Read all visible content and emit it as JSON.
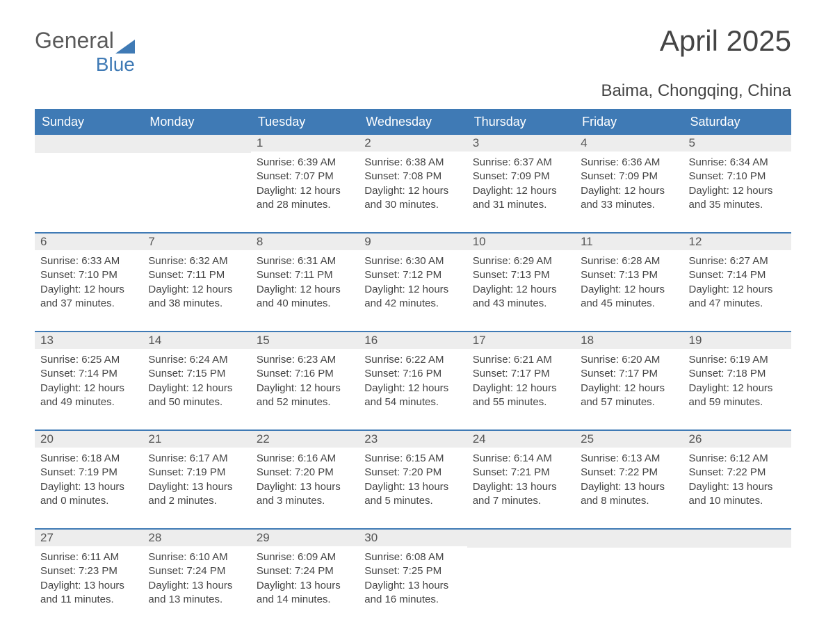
{
  "logo": {
    "word1": "General",
    "word2": "Blue",
    "triangle_color": "#3f7ab5"
  },
  "title": "April 2025",
  "location": "Baima, Chongqing, China",
  "colors": {
    "header_bg": "#3f7ab5",
    "header_text": "#ffffff",
    "daynum_band_bg": "#ededed",
    "body_text": "#444444",
    "week_divider": "#3f7ab5",
    "page_bg": "#ffffff"
  },
  "typography": {
    "title_fontsize": 42,
    "location_fontsize": 24,
    "dayheader_fontsize": 18,
    "daynum_fontsize": 17,
    "body_fontsize": 15
  },
  "day_names": [
    "Sunday",
    "Monday",
    "Tuesday",
    "Wednesday",
    "Thursday",
    "Friday",
    "Saturday"
  ],
  "weeks": [
    [
      {
        "empty": true
      },
      {
        "empty": true
      },
      {
        "num": "1",
        "sunrise": "Sunrise: 6:39 AM",
        "sunset": "Sunset: 7:07 PM",
        "daylight": "Daylight: 12 hours and 28 minutes."
      },
      {
        "num": "2",
        "sunrise": "Sunrise: 6:38 AM",
        "sunset": "Sunset: 7:08 PM",
        "daylight": "Daylight: 12 hours and 30 minutes."
      },
      {
        "num": "3",
        "sunrise": "Sunrise: 6:37 AM",
        "sunset": "Sunset: 7:09 PM",
        "daylight": "Daylight: 12 hours and 31 minutes."
      },
      {
        "num": "4",
        "sunrise": "Sunrise: 6:36 AM",
        "sunset": "Sunset: 7:09 PM",
        "daylight": "Daylight: 12 hours and 33 minutes."
      },
      {
        "num": "5",
        "sunrise": "Sunrise: 6:34 AM",
        "sunset": "Sunset: 7:10 PM",
        "daylight": "Daylight: 12 hours and 35 minutes."
      }
    ],
    [
      {
        "num": "6",
        "sunrise": "Sunrise: 6:33 AM",
        "sunset": "Sunset: 7:10 PM",
        "daylight": "Daylight: 12 hours and 37 minutes."
      },
      {
        "num": "7",
        "sunrise": "Sunrise: 6:32 AM",
        "sunset": "Sunset: 7:11 PM",
        "daylight": "Daylight: 12 hours and 38 minutes."
      },
      {
        "num": "8",
        "sunrise": "Sunrise: 6:31 AM",
        "sunset": "Sunset: 7:11 PM",
        "daylight": "Daylight: 12 hours and 40 minutes."
      },
      {
        "num": "9",
        "sunrise": "Sunrise: 6:30 AM",
        "sunset": "Sunset: 7:12 PM",
        "daylight": "Daylight: 12 hours and 42 minutes."
      },
      {
        "num": "10",
        "sunrise": "Sunrise: 6:29 AM",
        "sunset": "Sunset: 7:13 PM",
        "daylight": "Daylight: 12 hours and 43 minutes."
      },
      {
        "num": "11",
        "sunrise": "Sunrise: 6:28 AM",
        "sunset": "Sunset: 7:13 PM",
        "daylight": "Daylight: 12 hours and 45 minutes."
      },
      {
        "num": "12",
        "sunrise": "Sunrise: 6:27 AM",
        "sunset": "Sunset: 7:14 PM",
        "daylight": "Daylight: 12 hours and 47 minutes."
      }
    ],
    [
      {
        "num": "13",
        "sunrise": "Sunrise: 6:25 AM",
        "sunset": "Sunset: 7:14 PM",
        "daylight": "Daylight: 12 hours and 49 minutes."
      },
      {
        "num": "14",
        "sunrise": "Sunrise: 6:24 AM",
        "sunset": "Sunset: 7:15 PM",
        "daylight": "Daylight: 12 hours and 50 minutes."
      },
      {
        "num": "15",
        "sunrise": "Sunrise: 6:23 AM",
        "sunset": "Sunset: 7:16 PM",
        "daylight": "Daylight: 12 hours and 52 minutes."
      },
      {
        "num": "16",
        "sunrise": "Sunrise: 6:22 AM",
        "sunset": "Sunset: 7:16 PM",
        "daylight": "Daylight: 12 hours and 54 minutes."
      },
      {
        "num": "17",
        "sunrise": "Sunrise: 6:21 AM",
        "sunset": "Sunset: 7:17 PM",
        "daylight": "Daylight: 12 hours and 55 minutes."
      },
      {
        "num": "18",
        "sunrise": "Sunrise: 6:20 AM",
        "sunset": "Sunset: 7:17 PM",
        "daylight": "Daylight: 12 hours and 57 minutes."
      },
      {
        "num": "19",
        "sunrise": "Sunrise: 6:19 AM",
        "sunset": "Sunset: 7:18 PM",
        "daylight": "Daylight: 12 hours and 59 minutes."
      }
    ],
    [
      {
        "num": "20",
        "sunrise": "Sunrise: 6:18 AM",
        "sunset": "Sunset: 7:19 PM",
        "daylight": "Daylight: 13 hours and 0 minutes."
      },
      {
        "num": "21",
        "sunrise": "Sunrise: 6:17 AM",
        "sunset": "Sunset: 7:19 PM",
        "daylight": "Daylight: 13 hours and 2 minutes."
      },
      {
        "num": "22",
        "sunrise": "Sunrise: 6:16 AM",
        "sunset": "Sunset: 7:20 PM",
        "daylight": "Daylight: 13 hours and 3 minutes."
      },
      {
        "num": "23",
        "sunrise": "Sunrise: 6:15 AM",
        "sunset": "Sunset: 7:20 PM",
        "daylight": "Daylight: 13 hours and 5 minutes."
      },
      {
        "num": "24",
        "sunrise": "Sunrise: 6:14 AM",
        "sunset": "Sunset: 7:21 PM",
        "daylight": "Daylight: 13 hours and 7 minutes."
      },
      {
        "num": "25",
        "sunrise": "Sunrise: 6:13 AM",
        "sunset": "Sunset: 7:22 PM",
        "daylight": "Daylight: 13 hours and 8 minutes."
      },
      {
        "num": "26",
        "sunrise": "Sunrise: 6:12 AM",
        "sunset": "Sunset: 7:22 PM",
        "daylight": "Daylight: 13 hours and 10 minutes."
      }
    ],
    [
      {
        "num": "27",
        "sunrise": "Sunrise: 6:11 AM",
        "sunset": "Sunset: 7:23 PM",
        "daylight": "Daylight: 13 hours and 11 minutes."
      },
      {
        "num": "28",
        "sunrise": "Sunrise: 6:10 AM",
        "sunset": "Sunset: 7:24 PM",
        "daylight": "Daylight: 13 hours and 13 minutes."
      },
      {
        "num": "29",
        "sunrise": "Sunrise: 6:09 AM",
        "sunset": "Sunset: 7:24 PM",
        "daylight": "Daylight: 13 hours and 14 minutes."
      },
      {
        "num": "30",
        "sunrise": "Sunrise: 6:08 AM",
        "sunset": "Sunset: 7:25 PM",
        "daylight": "Daylight: 13 hours and 16 minutes."
      },
      {
        "empty": true
      },
      {
        "empty": true
      },
      {
        "empty": true
      }
    ]
  ]
}
